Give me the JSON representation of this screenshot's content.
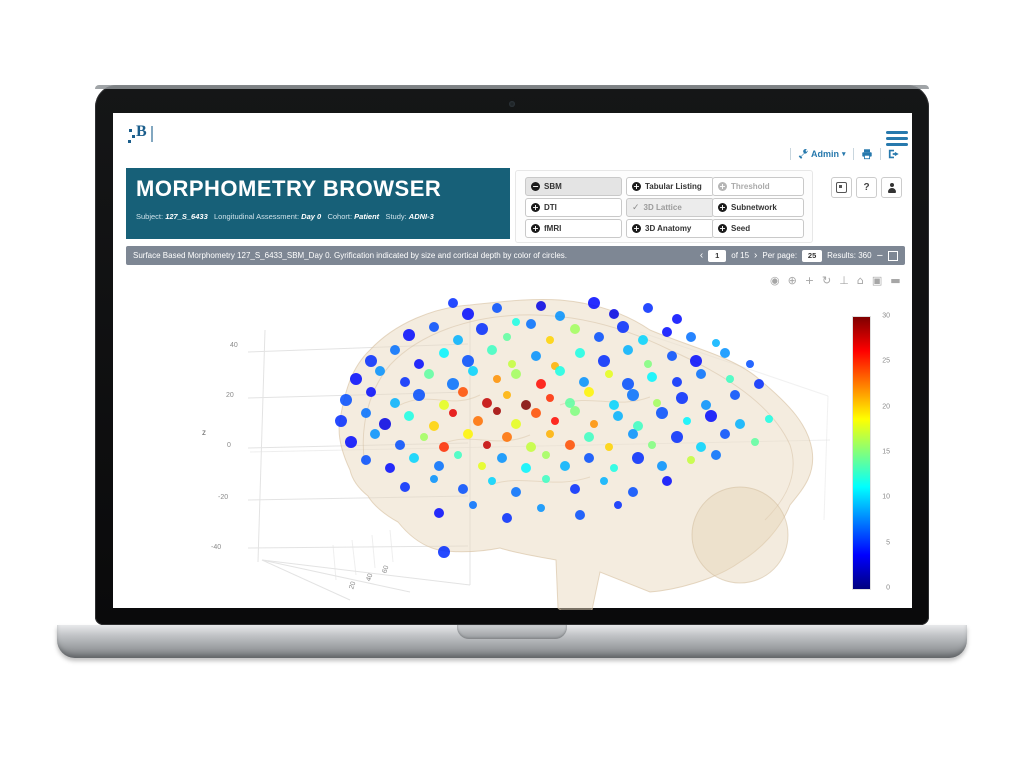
{
  "app": {
    "logo_letter": "B"
  },
  "navbar": {
    "admin_label": "Admin",
    "caret": "▾"
  },
  "header": {
    "title": "MORPHOMETRY BROWSER",
    "fields": {
      "subject_label": "Subject:",
      "subject_value": "127_S_6433",
      "assessment_label": "Longitudinal Assessment:",
      "assessment_value": "Day 0",
      "cohort_label": "Cohort:",
      "cohort_value": "Patient",
      "study_label": "Study:",
      "study_value": "ADNI-3"
    }
  },
  "modes": {
    "items": [
      {
        "label": "SBM",
        "icon": "minus-circle",
        "glyph": "−",
        "state": "active"
      },
      {
        "label": "DTI",
        "icon": "gear-circle",
        "glyph": "+",
        "state": "normal"
      },
      {
        "label": "fMRI",
        "icon": "gear-circle",
        "glyph": "+",
        "state": "normal"
      },
      {
        "label": "Tabular Listing",
        "icon": "gear-circle",
        "glyph": "+",
        "state": "normal"
      },
      {
        "label": "3D Lattice",
        "icon": "check",
        "glyph": "✓",
        "state": "selected-disabled"
      },
      {
        "label": "3D Anatomy",
        "icon": "gear-circle",
        "glyph": "+",
        "state": "normal"
      },
      {
        "label": "Threshold",
        "icon": "gear-circle",
        "glyph": "+",
        "state": "disabled"
      },
      {
        "label": "Subnetwork",
        "icon": "gear-circle",
        "glyph": "+",
        "state": "normal"
      },
      {
        "label": "Seed",
        "icon": "gear-circle",
        "glyph": "+",
        "state": "normal"
      }
    ]
  },
  "utility_buttons": {
    "help_label": "?"
  },
  "status_bar": {
    "text": "Surface Based Morphometry 127_S_6433_SBM_Day 0. Gyrification indicated by size and cortical depth by color of circles.",
    "pagination": {
      "prev": "‹",
      "page": "1",
      "of": "of 15",
      "next": "›",
      "per_page_label": "Per page:",
      "per_page": "25",
      "results": "Results: 360",
      "collapse": "−"
    }
  },
  "plot": {
    "toolbar": [
      {
        "name": "camera",
        "glyph": "◉"
      },
      {
        "name": "zoom",
        "glyph": "⊕"
      },
      {
        "name": "pan",
        "glyph": "+"
      },
      {
        "name": "orbit",
        "glyph": "↻"
      },
      {
        "name": "turntable",
        "glyph": "⊥"
      },
      {
        "name": "reset-camera",
        "glyph": "⌂"
      },
      {
        "name": "save-camera",
        "glyph": "▣"
      },
      {
        "name": "plotly-logo",
        "glyph": "▬"
      }
    ]
  },
  "colors": {
    "accent": "#2779ad",
    "teal": "#176078",
    "statusbar": "#7e8794",
    "colormap": "jet"
  },
  "chart_data": {
    "type": "scatter",
    "subtype": "3d-scatter-on-brain",
    "title": "Surface Based Morphometry 127_S_6433_SBM_Day 0",
    "legend": "Gyrification indicated by size, cortical depth by color of circles",
    "z_axis": {
      "label": "z",
      "ticks": [
        40,
        20,
        0,
        -20,
        -40
      ]
    },
    "floor_ticks": [
      20,
      40,
      60
    ],
    "colorbar": {
      "min": 0,
      "max": 30,
      "ticks": [
        30,
        25,
        20,
        15,
        10,
        5,
        0
      ],
      "colormap": "jet"
    },
    "points_format": [
      "x_pct",
      "y_pct",
      "depth_value_0_30",
      "radius_px"
    ],
    "points": [
      [
        27,
        2,
        5,
        5
      ],
      [
        30,
        6,
        4,
        6
      ],
      [
        36,
        4,
        6,
        5
      ],
      [
        45,
        3,
        3,
        5
      ],
      [
        49,
        7,
        8,
        5
      ],
      [
        56,
        2,
        4,
        6
      ],
      [
        60,
        6,
        3,
        5
      ],
      [
        67,
        4,
        5,
        5
      ],
      [
        40,
        9,
        12,
        4
      ],
      [
        73,
        8,
        4,
        5
      ],
      [
        18,
        14,
        4,
        6
      ],
      [
        23,
        11,
        6,
        5
      ],
      [
        28,
        16,
        9,
        5
      ],
      [
        33,
        12,
        5,
        6
      ],
      [
        38,
        15,
        14,
        4
      ],
      [
        43,
        10,
        7,
        5
      ],
      [
        47,
        16,
        20,
        4
      ],
      [
        52,
        12,
        16,
        5
      ],
      [
        57,
        15,
        6,
        5
      ],
      [
        62,
        11,
        5,
        6
      ],
      [
        66,
        16,
        10,
        5
      ],
      [
        71,
        13,
        4,
        5
      ],
      [
        76,
        15,
        7,
        5
      ],
      [
        81,
        17,
        9,
        4
      ],
      [
        10,
        24,
        5,
        6
      ],
      [
        15,
        20,
        7,
        5
      ],
      [
        20,
        25,
        4,
        5
      ],
      [
        25,
        21,
        11,
        5
      ],
      [
        30,
        24,
        6,
        6
      ],
      [
        35,
        20,
        13,
        5
      ],
      [
        39,
        25,
        17,
        4
      ],
      [
        44,
        22,
        8,
        5
      ],
      [
        48,
        26,
        21,
        4
      ],
      [
        53,
        21,
        12,
        5
      ],
      [
        58,
        24,
        5,
        6
      ],
      [
        63,
        20,
        9,
        5
      ],
      [
        67,
        25,
        15,
        4
      ],
      [
        72,
        22,
        6,
        5
      ],
      [
        77,
        24,
        4,
        6
      ],
      [
        83,
        21,
        8,
        5
      ],
      [
        88,
        25,
        6,
        4
      ],
      [
        7,
        31,
        4,
        6
      ],
      [
        12,
        28,
        8,
        5
      ],
      [
        17,
        32,
        5,
        5
      ],
      [
        22,
        29,
        14,
        5
      ],
      [
        27,
        33,
        7,
        6
      ],
      [
        31,
        28,
        10,
        5
      ],
      [
        36,
        31,
        22,
        4
      ],
      [
        40,
        29,
        16,
        5
      ],
      [
        45,
        33,
        26,
        5
      ],
      [
        49,
        28,
        12,
        5
      ],
      [
        54,
        32,
        8,
        5
      ],
      [
        59,
        29,
        18,
        4
      ],
      [
        63,
        33,
        6,
        6
      ],
      [
        68,
        30,
        11,
        5
      ],
      [
        73,
        32,
        5,
        5
      ],
      [
        78,
        29,
        7,
        5
      ],
      [
        84,
        31,
        13,
        4
      ],
      [
        90,
        33,
        5,
        5
      ],
      [
        5,
        39,
        6,
        6
      ],
      [
        10,
        36,
        4,
        5
      ],
      [
        15,
        40,
        9,
        5
      ],
      [
        20,
        37,
        6,
        6
      ],
      [
        25,
        41,
        18,
        5
      ],
      [
        29,
        36,
        24,
        5
      ],
      [
        34,
        40,
        28,
        5
      ],
      [
        38,
        37,
        21,
        4
      ],
      [
        42,
        41,
        30,
        5
      ],
      [
        47,
        38,
        25,
        4
      ],
      [
        51,
        40,
        14,
        5
      ],
      [
        55,
        36,
        19,
        5
      ],
      [
        60,
        41,
        10,
        5
      ],
      [
        64,
        37,
        7,
        6
      ],
      [
        69,
        40,
        16,
        4
      ],
      [
        74,
        38,
        5,
        6
      ],
      [
        79,
        41,
        8,
        5
      ],
      [
        85,
        37,
        6,
        5
      ],
      [
        4,
        47,
        5,
        6
      ],
      [
        9,
        44,
        7,
        5
      ],
      [
        13,
        48,
        3,
        6
      ],
      [
        18,
        45,
        12,
        5
      ],
      [
        23,
        49,
        20,
        5
      ],
      [
        27,
        44,
        27,
        4
      ],
      [
        32,
        47,
        23,
        5
      ],
      [
        36,
        43,
        29,
        4
      ],
      [
        40,
        48,
        18,
        5
      ],
      [
        44,
        44,
        24,
        5
      ],
      [
        48,
        47,
        26,
        4
      ],
      [
        52,
        43,
        15,
        5
      ],
      [
        56,
        48,
        22,
        4
      ],
      [
        61,
        45,
        9,
        5
      ],
      [
        65,
        49,
        13,
        5
      ],
      [
        70,
        44,
        6,
        6
      ],
      [
        75,
        47,
        11,
        4
      ],
      [
        80,
        45,
        4,
        6
      ],
      [
        86,
        48,
        9,
        5
      ],
      [
        92,
        46,
        12,
        4
      ],
      [
        6,
        55,
        4,
        6
      ],
      [
        11,
        52,
        8,
        5
      ],
      [
        16,
        56,
        6,
        5
      ],
      [
        21,
        53,
        16,
        4
      ],
      [
        25,
        57,
        25,
        5
      ],
      [
        30,
        52,
        19,
        5
      ],
      [
        34,
        56,
        28,
        4
      ],
      [
        38,
        53,
        23,
        5
      ],
      [
        43,
        57,
        17,
        5
      ],
      [
        47,
        52,
        21,
        4
      ],
      [
        51,
        56,
        24,
        5
      ],
      [
        55,
        53,
        13,
        5
      ],
      [
        59,
        57,
        20,
        4
      ],
      [
        64,
        52,
        8,
        5
      ],
      [
        68,
        56,
        15,
        4
      ],
      [
        73,
        53,
        5,
        6
      ],
      [
        78,
        57,
        10,
        5
      ],
      [
        83,
        52,
        6,
        5
      ],
      [
        89,
        55,
        14,
        4
      ],
      [
        9,
        62,
        6,
        5
      ],
      [
        14,
        65,
        4,
        5
      ],
      [
        19,
        61,
        10,
        5
      ],
      [
        24,
        64,
        7,
        5
      ],
      [
        28,
        60,
        13,
        4
      ],
      [
        33,
        64,
        18,
        4
      ],
      [
        37,
        61,
        8,
        5
      ],
      [
        42,
        65,
        11,
        5
      ],
      [
        46,
        60,
        16,
        4
      ],
      [
        50,
        64,
        9,
        5
      ],
      [
        55,
        61,
        6,
        5
      ],
      [
        60,
        65,
        12,
        4
      ],
      [
        65,
        61,
        5,
        6
      ],
      [
        70,
        64,
        8,
        5
      ],
      [
        76,
        62,
        17,
        4
      ],
      [
        81,
        60,
        7,
        5
      ],
      [
        17,
        72,
        5,
        5
      ],
      [
        23,
        69,
        8,
        4
      ],
      [
        29,
        73,
        6,
        5
      ],
      [
        35,
        70,
        10,
        4
      ],
      [
        40,
        74,
        7,
        5
      ],
      [
        46,
        69,
        13,
        4
      ],
      [
        52,
        73,
        5,
        5
      ],
      [
        58,
        70,
        9,
        4
      ],
      [
        64,
        74,
        6,
        5
      ],
      [
        71,
        70,
        4,
        5
      ],
      [
        24,
        82,
        4,
        5
      ],
      [
        31,
        79,
        7,
        4
      ],
      [
        38,
        84,
        5,
        5
      ],
      [
        45,
        80,
        8,
        4
      ],
      [
        53,
        83,
        6,
        5
      ],
      [
        61,
        79,
        5,
        4
      ],
      [
        25,
        97,
        5,
        6
      ]
    ]
  }
}
